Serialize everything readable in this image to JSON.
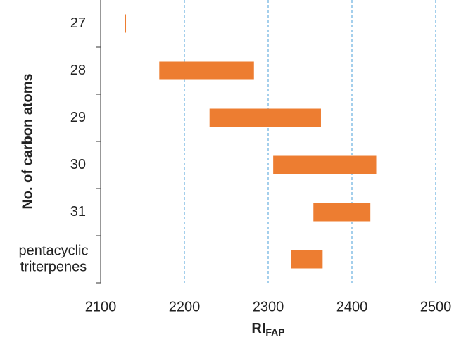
{
  "chart_data": {
    "type": "range-bar",
    "ylabel": "No. of carbon atoms",
    "xlabel": "RI",
    "xlabel_subscript": "FAP",
    "categories": [
      "27",
      "28",
      "29",
      "30",
      "31",
      "pentacyclic triterpenes"
    ],
    "starts": [
      2129,
      2170,
      2230,
      2306,
      2354,
      2327
    ],
    "ends": [
      2130,
      2283,
      2363,
      2429,
      2422,
      2365
    ],
    "color": "#ed7d31",
    "xlim": [
      2100,
      2500
    ],
    "xticks": [
      2100,
      2200,
      2300,
      2400,
      2500
    ],
    "grid": true,
    "grid_color": "#4a9fd8"
  }
}
